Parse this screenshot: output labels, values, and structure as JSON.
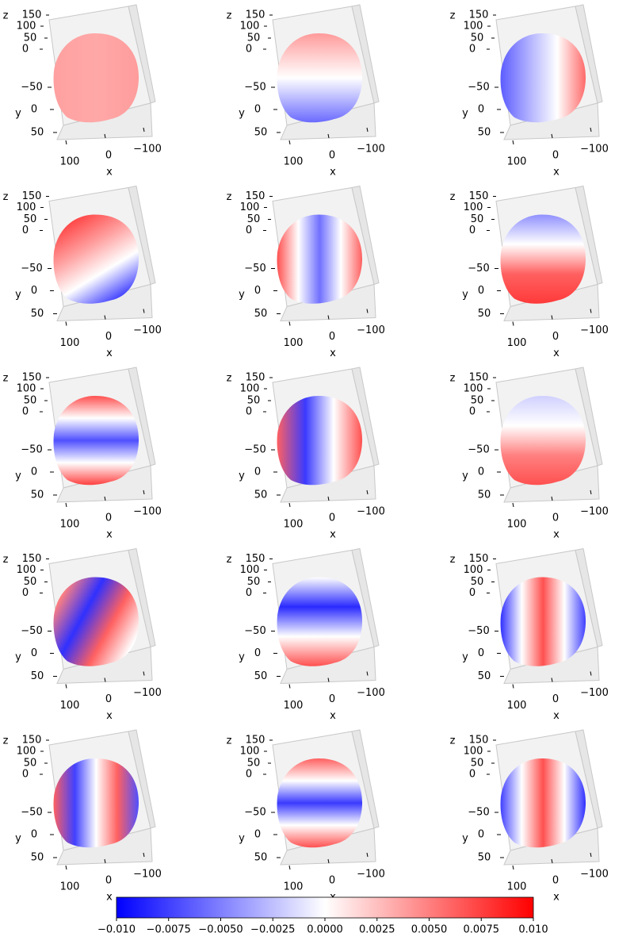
{
  "chart_data": {
    "type": "surface3d",
    "xlabel": "x",
    "ylabel": "y",
    "zlabel": "z",
    "xlim": [
      -120,
      120
    ],
    "xticks": [
      {
        "value": 100,
        "label": "100"
      },
      0,
      {
        "value": -100,
        "label": "−100"
      }
    ],
    "ylim": [
      -80,
      70
    ],
    "yticks": [
      {
        "value": -50,
        "label": "−50"
      },
      0,
      50
    ],
    "zlim": [
      -10,
      160
    ],
    "zticks": [
      150,
      100,
      50,
      0
    ],
    "colorbar": {
      "colors": [
        "#0000ff",
        "#ffffff",
        "#ff0000"
      ],
      "clim": [
        -0.01,
        0.01
      ],
      "ticks": [
        {
          "value": -0.01,
          "label": "−0.010"
        },
        {
          "value": -0.0075,
          "label": "−0.0075"
        },
        {
          "value": -0.005,
          "label": "−0.0050"
        },
        {
          "value": -0.0025,
          "label": "−0.0025"
        },
        {
          "value": 0,
          "label": "0.0000"
        },
        {
          "value": 0.0025,
          "label": "0.0025"
        },
        {
          "value": 0.005,
          "label": "0.0050"
        },
        {
          "value": 0.0075,
          "label": "0.0075"
        },
        {
          "value": 0.01,
          "label": "0.010"
        }
      ]
    }
  }
}
